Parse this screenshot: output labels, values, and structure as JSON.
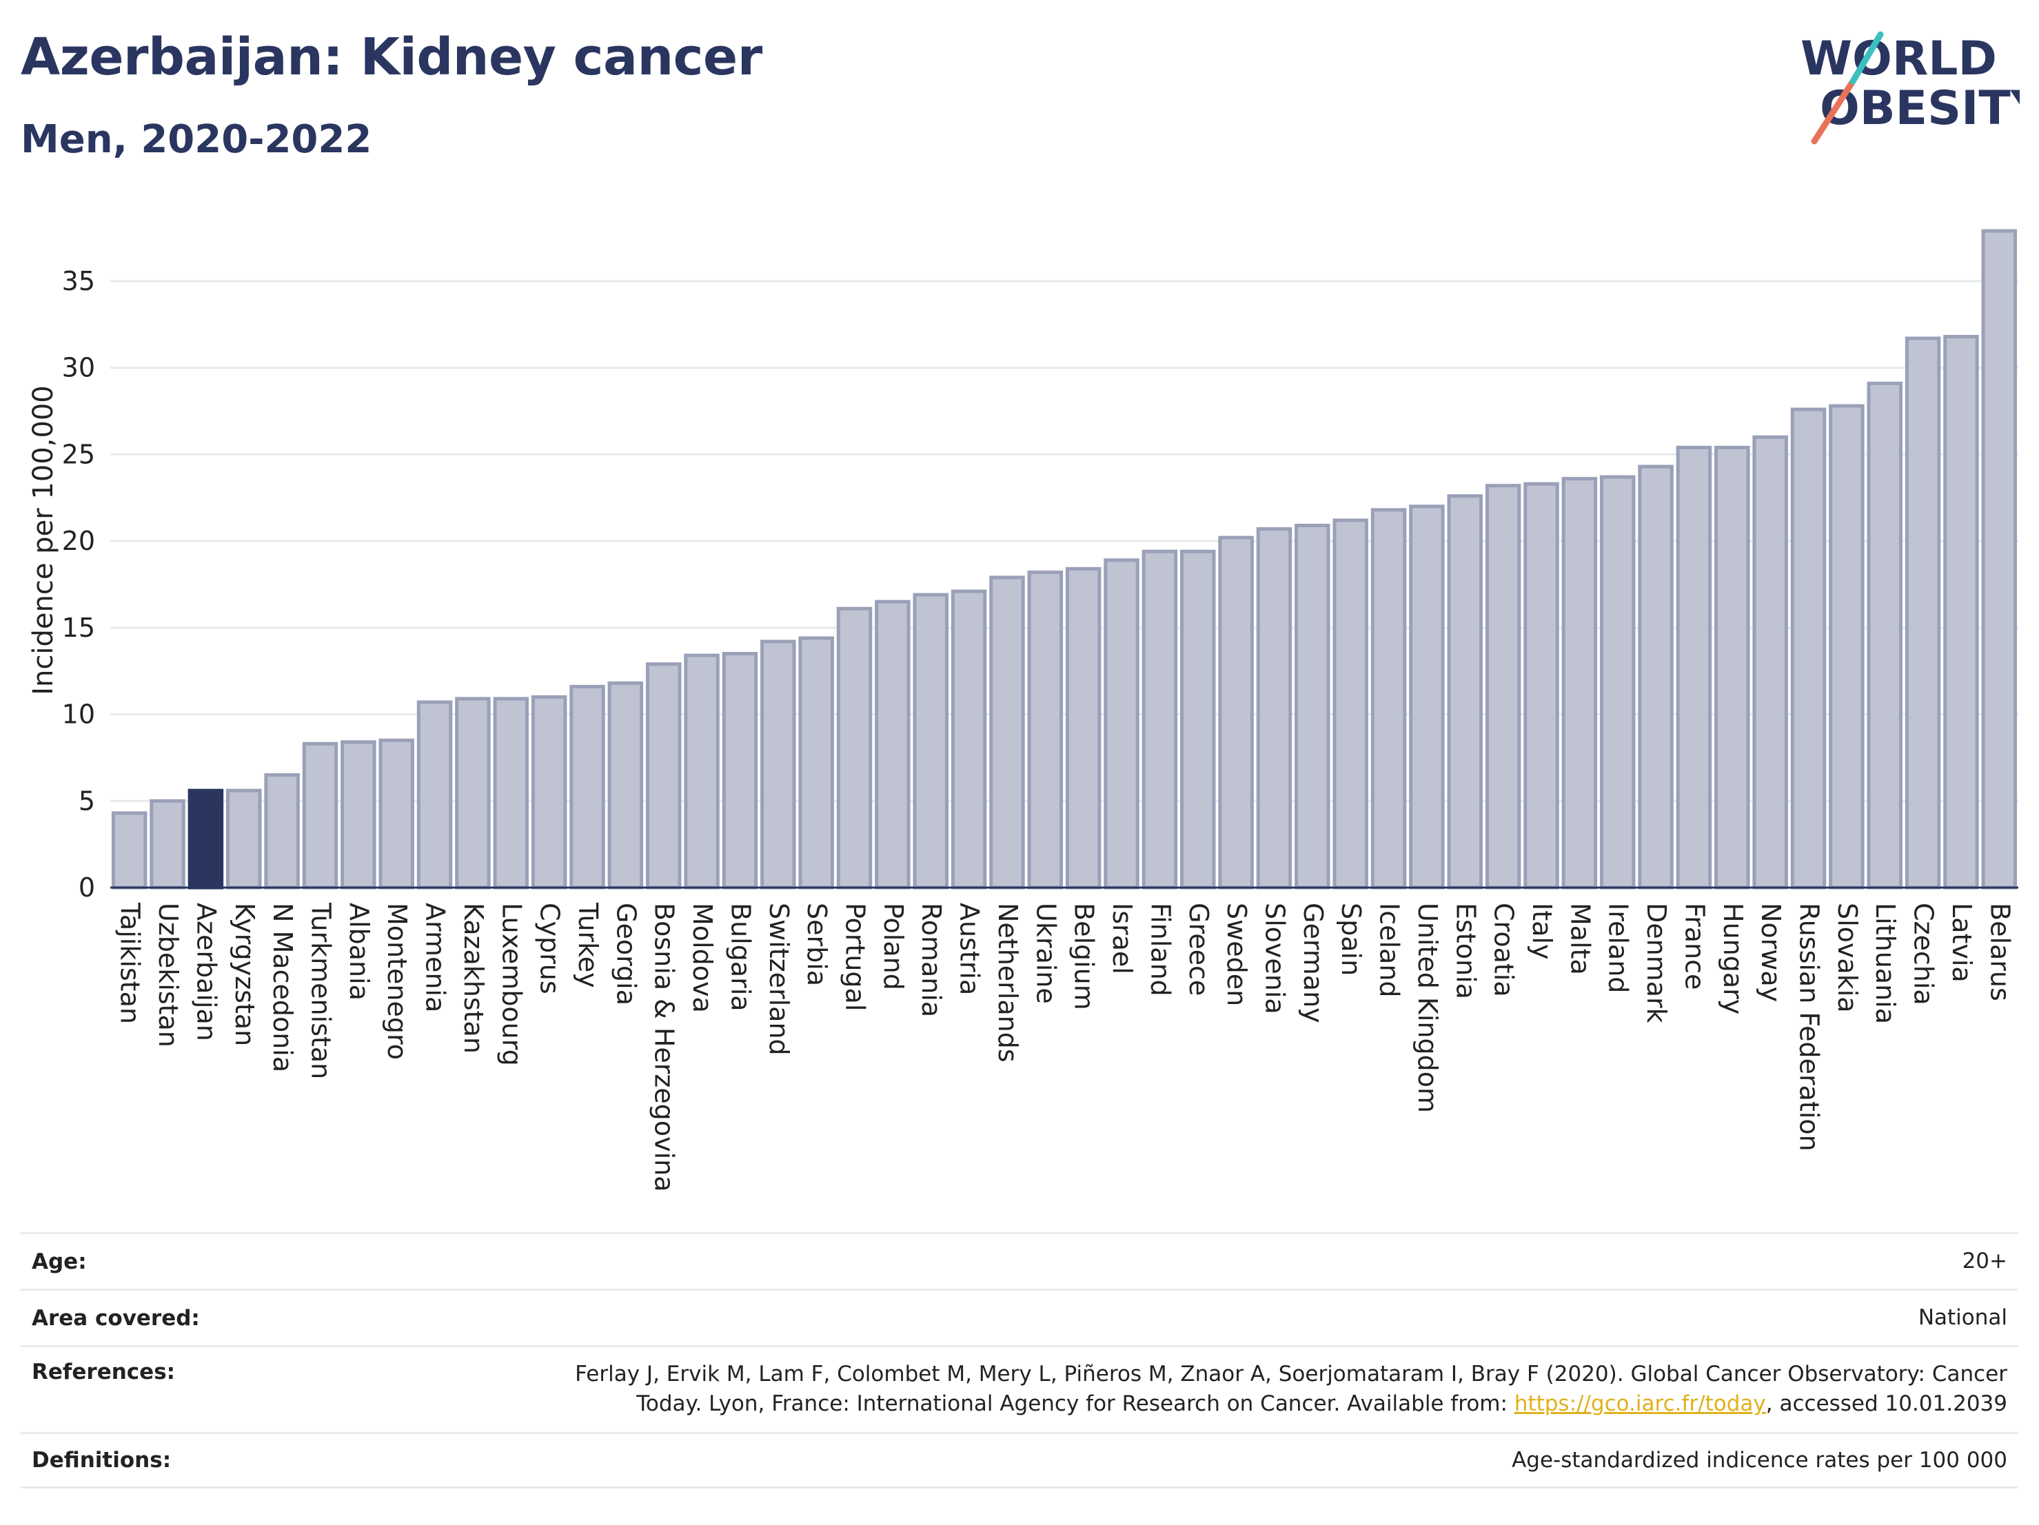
{
  "header": {
    "title": "Azerbaijan: Kidney cancer",
    "subtitle": "Men, 2020-2022",
    "logo_line1": "WORLD",
    "logo_line2": "OBESITY"
  },
  "chart_data": {
    "type": "bar",
    "ylabel": "Incidence per 100,000",
    "ylim": [
      0,
      38.5
    ],
    "yticks": [
      0,
      5,
      10,
      15,
      20,
      25,
      30,
      35
    ],
    "grid": true,
    "highlight": "Azerbaijan",
    "colors": {
      "bar": "#bfc3d2",
      "bar_edge": "#9aa0b8",
      "highlight": "#2a3660"
    },
    "categories": [
      "Tajikistan",
      "Uzbekistan",
      "Azerbaijan",
      "Kyrgyzstan",
      "N Macedonia",
      "Turkmenistan",
      "Albania",
      "Montenegro",
      "Armenia",
      "Kazakhstan",
      "Luxembourg",
      "Cyprus",
      "Turkey",
      "Georgia",
      "Bosnia & Herzegovina",
      "Moldova",
      "Bulgaria",
      "Switzerland",
      "Serbia",
      "Portugal",
      "Poland",
      "Romania",
      "Austria",
      "Netherlands",
      "Ukraine",
      "Belgium",
      "Israel",
      "Finland",
      "Greece",
      "Sweden",
      "Slovenia",
      "Germany",
      "Spain",
      "Iceland",
      "United Kingdom",
      "Estonia",
      "Croatia",
      "Italy",
      "Malta",
      "Ireland",
      "Denmark",
      "France",
      "Hungary",
      "Norway",
      "Russian Federation",
      "Slovakia",
      "Lithuania",
      "Czechia",
      "Latvia",
      "Belarus"
    ],
    "values": [
      4.3,
      5.0,
      5.6,
      5.6,
      6.5,
      8.3,
      8.4,
      8.5,
      10.7,
      10.9,
      10.9,
      11.0,
      11.6,
      11.8,
      12.9,
      13.4,
      13.5,
      14.2,
      14.4,
      16.1,
      16.5,
      16.9,
      17.1,
      17.9,
      18.2,
      18.4,
      18.9,
      19.4,
      19.4,
      20.2,
      20.7,
      20.9,
      21.2,
      21.8,
      22.0,
      22.6,
      23.2,
      23.3,
      23.6,
      23.7,
      24.3,
      25.4,
      25.4,
      26.0,
      27.6,
      27.8,
      29.1,
      31.7,
      31.8,
      37.9
    ]
  },
  "info": {
    "age_label": "Age:",
    "age_value": "20+",
    "area_label": "Area covered:",
    "area_value": "National",
    "ref_label": "References:",
    "ref_text_1": "Ferlay J, Ervik M, Lam F, Colombet M, Mery L, Piñeros M, Znaor A, Soerjomataram I, Bray F (2020). Global Cancer Observatory: Cancer",
    "ref_text_2": "Today. Lyon, France: International Agency for Research on Cancer. Available from: ",
    "ref_link": "https://gco.iarc.fr/today",
    "ref_text_3": ", accessed 10.01.2039",
    "def_label": "Definitions:",
    "def_value": "Age-standardized indicence rates per 100 000"
  }
}
